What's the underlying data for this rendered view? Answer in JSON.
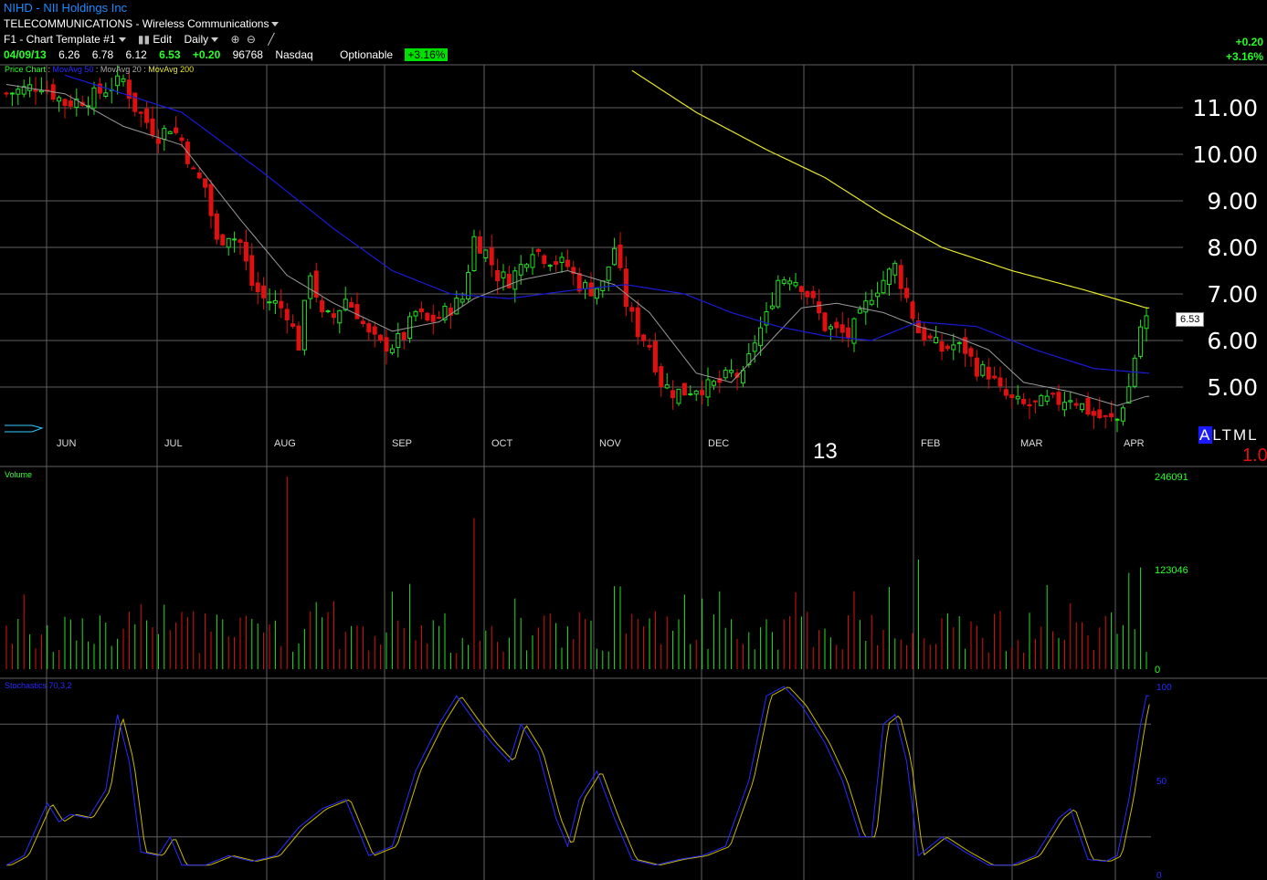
{
  "header": {
    "title": "NIHD - NII Holdings Inc",
    "industry": "TELECOMMUNICATIONS - Wireless Communications",
    "template": "F1 - Chart Template #1",
    "edit_label": "Edit",
    "period": "Daily",
    "quote": {
      "date": "04/09/13",
      "open": "6.26",
      "high": "6.78",
      "low": "6.12",
      "close": "6.53",
      "change": "+0.20",
      "volume": "96768",
      "exchange": "Nasdaq",
      "optionable": "Optionable",
      "pct": "+3.16%"
    },
    "right_change": "+0.20",
    "right_pct": "+3.16%"
  },
  "panels": {
    "price_label": "Price Chart",
    "ma50_label": "MovAvg 50",
    "ma20_label": "MovAvg 20",
    "ma200_label": "MovAvg 200",
    "volume_label": "Volume",
    "stoch_label": "Stochastics 70,3,2",
    "last_price_box": "6.53",
    "year_label": "13",
    "altml": [
      "A",
      "L",
      "T",
      "M",
      "L"
    ],
    "scale_factor": "1.0"
  },
  "colors": {
    "up": "#22e022",
    "down": "#e01010",
    "ma20": "#9a9a9a",
    "ma50": "#1a1ad8",
    "ma200": "#e6e62a",
    "grid": "#606060",
    "stoch_k": "#2a2aff",
    "stoch_d": "#c8b800"
  },
  "chart_data": [
    {
      "type": "candlestick",
      "title": "Price Chart",
      "y_ticks": [
        "11.00",
        "10.00",
        "9.00",
        "8.00",
        "7.00",
        "6.00",
        "5.00"
      ],
      "ylim": [
        4.2,
        11.8
      ],
      "x_ticks": [
        "JUN",
        "JUL",
        "AUG",
        "SEP",
        "OCT",
        "NOV",
        "DEC",
        "FEB",
        "MAR",
        "APR"
      ],
      "series_names": [
        "MovAvg 50",
        "MovAvg 20",
        "MovAvg 200"
      ],
      "close_anchors": [
        [
          0,
          11.3
        ],
        [
          6,
          11.5
        ],
        [
          10,
          11.1
        ],
        [
          14,
          11.2
        ],
        [
          20,
          11.6
        ],
        [
          22,
          11.0
        ],
        [
          26,
          10.4
        ],
        [
          28,
          10.6
        ],
        [
          30,
          10.3
        ],
        [
          32,
          9.6
        ],
        [
          34,
          9.3
        ],
        [
          36,
          8.1
        ],
        [
          38,
          8.3
        ],
        [
          40,
          8.1
        ],
        [
          42,
          7.2
        ],
        [
          44,
          6.9
        ],
        [
          46,
          6.8
        ],
        [
          48,
          6.6
        ],
        [
          50,
          5.9
        ],
        [
          52,
          7.5
        ],
        [
          54,
          6.5
        ],
        [
          56,
          6.5
        ],
        [
          58,
          6.9
        ],
        [
          60,
          6.6
        ],
        [
          62,
          6.1
        ],
        [
          64,
          5.9
        ],
        [
          66,
          5.9
        ],
        [
          68,
          6.1
        ],
        [
          70,
          6.6
        ],
        [
          72,
          6.4
        ],
        [
          74,
          6.5
        ],
        [
          76,
          6.7
        ],
        [
          78,
          6.9
        ],
        [
          80,
          8.2
        ],
        [
          82,
          7.9
        ],
        [
          84,
          7.4
        ],
        [
          86,
          7.3
        ],
        [
          88,
          7.6
        ],
        [
          90,
          8.0
        ],
        [
          92,
          7.8
        ],
        [
          94,
          7.7
        ],
        [
          96,
          7.6
        ],
        [
          98,
          7.2
        ],
        [
          100,
          7.1
        ],
        [
          102,
          7.2
        ],
        [
          104,
          8.0
        ],
        [
          106,
          6.8
        ],
        [
          108,
          6.2
        ],
        [
          110,
          5.9
        ],
        [
          112,
          5.1
        ],
        [
          114,
          4.9
        ],
        [
          116,
          4.9
        ],
        [
          118,
          5.0
        ],
        [
          120,
          5.0
        ],
        [
          122,
          5.1
        ],
        [
          124,
          5.3
        ],
        [
          126,
          5.2
        ],
        [
          128,
          6.0
        ],
        [
          130,
          6.5
        ],
        [
          132,
          7.3
        ],
        [
          134,
          7.4
        ],
        [
          136,
          7.2
        ],
        [
          138,
          6.8
        ],
        [
          140,
          6.3
        ],
        [
          142,
          6.2
        ],
        [
          144,
          6.1
        ],
        [
          146,
          6.5
        ],
        [
          148,
          7.0
        ],
        [
          150,
          7.3
        ],
        [
          152,
          7.6
        ],
        [
          154,
          6.9
        ],
        [
          156,
          6.2
        ],
        [
          158,
          6.0
        ],
        [
          160,
          5.8
        ],
        [
          162,
          5.9
        ],
        [
          164,
          5.8
        ],
        [
          166,
          5.4
        ],
        [
          168,
          5.3
        ],
        [
          170,
          4.9
        ],
        [
          172,
          4.7
        ],
        [
          174,
          4.6
        ],
        [
          176,
          4.6
        ],
        [
          178,
          4.7
        ],
        [
          180,
          4.7
        ],
        [
          182,
          4.8
        ],
        [
          184,
          4.6
        ],
        [
          186,
          4.4
        ],
        [
          188,
          4.3
        ],
        [
          190,
          4.3
        ],
        [
          192,
          5.0
        ],
        [
          194,
          6.3
        ],
        [
          195,
          6.53
        ]
      ],
      "ma20_anchors": [
        [
          0,
          11.5
        ],
        [
          10,
          11.3
        ],
        [
          20,
          10.6
        ],
        [
          30,
          10.2
        ],
        [
          40,
          8.6
        ],
        [
          48,
          7.4
        ],
        [
          56,
          6.8
        ],
        [
          66,
          6.2
        ],
        [
          74,
          6.4
        ],
        [
          80,
          6.9
        ],
        [
          88,
          7.3
        ],
        [
          96,
          7.5
        ],
        [
          104,
          7.2
        ],
        [
          110,
          6.6
        ],
        [
          118,
          5.3
        ],
        [
          124,
          5.1
        ],
        [
          130,
          5.9
        ],
        [
          136,
          6.7
        ],
        [
          142,
          6.8
        ],
        [
          150,
          6.6
        ],
        [
          156,
          6.3
        ],
        [
          162,
          6.1
        ],
        [
          168,
          5.8
        ],
        [
          174,
          5.1
        ],
        [
          182,
          4.9
        ],
        [
          190,
          4.6
        ],
        [
          195,
          4.8
        ]
      ],
      "ma50_anchors": [
        [
          10,
          11.7
        ],
        [
          30,
          10.9
        ],
        [
          44,
          9.6
        ],
        [
          56,
          8.4
        ],
        [
          66,
          7.5
        ],
        [
          76,
          7.0
        ],
        [
          86,
          6.9
        ],
        [
          98,
          7.1
        ],
        [
          106,
          7.2
        ],
        [
          116,
          7.0
        ],
        [
          124,
          6.6
        ],
        [
          132,
          6.3
        ],
        [
          140,
          6.1
        ],
        [
          148,
          6.0
        ],
        [
          156,
          6.4
        ],
        [
          166,
          6.3
        ],
        [
          176,
          5.8
        ],
        [
          186,
          5.4
        ],
        [
          195,
          5.3
        ]
      ],
      "ma200_anchors": [
        [
          107,
          11.8
        ],
        [
          118,
          10.9
        ],
        [
          130,
          10.1
        ],
        [
          140,
          9.5
        ],
        [
          150,
          8.7
        ],
        [
          160,
          8.0
        ],
        [
          172,
          7.5
        ],
        [
          184,
          7.1
        ],
        [
          195,
          6.7
        ]
      ]
    },
    {
      "type": "bar",
      "title": "Volume",
      "y_ticks": [
        "246091",
        "123046",
        "0"
      ],
      "ylim": [
        0,
        246091
      ],
      "peaks": [
        [
          48,
          246091
        ],
        [
          80,
          193000
        ],
        [
          104,
          106000
        ],
        [
          156,
          140000
        ],
        [
          192,
          123046
        ],
        [
          194,
          130000
        ]
      ]
    },
    {
      "type": "line",
      "title": "Stochastics 70,3,2",
      "y_ticks": [
        "100",
        "50",
        "0"
      ],
      "ylim": [
        0,
        100
      ],
      "k_anchors": [
        [
          0,
          5
        ],
        [
          3,
          10
        ],
        [
          7,
          38
        ],
        [
          9,
          28
        ],
        [
          11,
          32
        ],
        [
          14,
          30
        ],
        [
          17,
          45
        ],
        [
          19,
          85
        ],
        [
          21,
          60
        ],
        [
          23,
          12
        ],
        [
          26,
          10
        ],
        [
          28,
          20
        ],
        [
          30,
          5
        ],
        [
          34,
          5
        ],
        [
          38,
          10
        ],
        [
          42,
          7
        ],
        [
          46,
          10
        ],
        [
          50,
          25
        ],
        [
          54,
          35
        ],
        [
          58,
          40
        ],
        [
          62,
          10
        ],
        [
          66,
          15
        ],
        [
          70,
          55
        ],
        [
          74,
          80
        ],
        [
          77,
          95
        ],
        [
          80,
          82
        ],
        [
          83,
          70
        ],
        [
          86,
          60
        ],
        [
          88,
          80
        ],
        [
          91,
          65
        ],
        [
          94,
          30
        ],
        [
          96,
          15
        ],
        [
          98,
          40
        ],
        [
          101,
          55
        ],
        [
          104,
          30
        ],
        [
          107,
          8
        ],
        [
          111,
          5
        ],
        [
          115,
          8
        ],
        [
          119,
          10
        ],
        [
          123,
          15
        ],
        [
          127,
          50
        ],
        [
          130,
          95
        ],
        [
          133,
          100
        ],
        [
          136,
          90
        ],
        [
          140,
          70
        ],
        [
          143,
          50
        ],
        [
          146,
          20
        ],
        [
          148,
          20
        ],
        [
          150,
          80
        ],
        [
          152,
          85
        ],
        [
          154,
          60
        ],
        [
          156,
          10
        ],
        [
          160,
          20
        ],
        [
          164,
          12
        ],
        [
          168,
          5
        ],
        [
          172,
          5
        ],
        [
          176,
          10
        ],
        [
          180,
          30
        ],
        [
          182,
          35
        ],
        [
          185,
          8
        ],
        [
          188,
          7
        ],
        [
          190,
          10
        ],
        [
          192,
          40
        ],
        [
          194,
          80
        ],
        [
          195,
          95
        ]
      ]
    }
  ]
}
